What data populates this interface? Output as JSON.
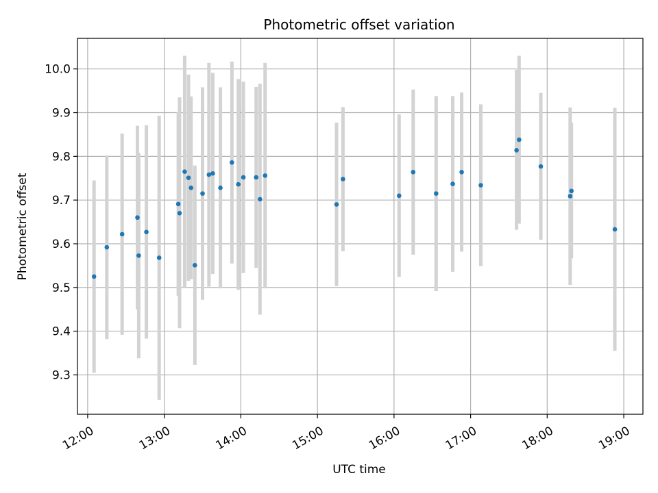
{
  "chart_data": {
    "type": "scatter",
    "title": "Photometric offset variation",
    "xlabel": "UTC time",
    "ylabel": "Photometric offset",
    "xlim": [
      "11:52",
      "19:15"
    ],
    "ylim": [
      9.21,
      10.07
    ],
    "x_ticks": [
      "12:00",
      "13:00",
      "14:00",
      "15:00",
      "16:00",
      "17:00",
      "18:00",
      "19:00"
    ],
    "y_ticks": [
      "9.3",
      "9.4",
      "9.5",
      "9.6",
      "9.7",
      "9.8",
      "9.9",
      "10.0"
    ],
    "grid": true,
    "colors": {
      "point": "#1f77b4",
      "errorbar": "#d3d3d3",
      "grid": "#b0b0b0"
    },
    "points": [
      {
        "x": "12:05",
        "y": 9.525,
        "lo": 9.305,
        "hi": 9.745
      },
      {
        "x": "12:15",
        "y": 9.592,
        "lo": 9.382,
        "hi": 9.802
      },
      {
        "x": "12:27",
        "y": 9.622,
        "lo": 9.392,
        "hi": 9.852
      },
      {
        "x": "12:39",
        "y": 9.66,
        "lo": 9.45,
        "hi": 9.87
      },
      {
        "x": "12:40",
        "y": 9.573,
        "lo": 9.338,
        "hi": 9.808
      },
      {
        "x": "12:46",
        "y": 9.627,
        "lo": 9.383,
        "hi": 9.871
      },
      {
        "x": "12:56",
        "y": 9.568,
        "lo": 9.243,
        "hi": 9.893
      },
      {
        "x": "13:11",
        "y": 9.691,
        "lo": 9.481,
        "hi": 9.901
      },
      {
        "x": "13:12",
        "y": 9.67,
        "lo": 9.407,
        "hi": 9.935
      },
      {
        "x": "13:16",
        "y": 9.765,
        "lo": 9.5,
        "hi": 10.03
      },
      {
        "x": "13:19",
        "y": 9.751,
        "lo": 9.515,
        "hi": 9.987
      },
      {
        "x": "13:21",
        "y": 9.728,
        "lo": 9.519,
        "hi": 9.937
      },
      {
        "x": "13:24",
        "y": 9.551,
        "lo": 9.323,
        "hi": 9.779
      },
      {
        "x": "13:30",
        "y": 9.715,
        "lo": 9.472,
        "hi": 9.958
      },
      {
        "x": "13:35",
        "y": 9.758,
        "lo": 9.502,
        "hi": 10.014
      },
      {
        "x": "13:38",
        "y": 9.761,
        "lo": 9.531,
        "hi": 9.991
      },
      {
        "x": "13:44",
        "y": 9.728,
        "lo": 9.498,
        "hi": 9.958
      },
      {
        "x": "13:53",
        "y": 9.786,
        "lo": 9.555,
        "hi": 10.017
      },
      {
        "x": "13:58",
        "y": 9.736,
        "lo": 9.495,
        "hi": 9.977
      },
      {
        "x": "14:02",
        "y": 9.752,
        "lo": 9.533,
        "hi": 9.971
      },
      {
        "x": "14:12",
        "y": 9.752,
        "lo": 9.545,
        "hi": 9.959
      },
      {
        "x": "14:15",
        "y": 9.702,
        "lo": 9.438,
        "hi": 9.966
      },
      {
        "x": "14:19",
        "y": 9.756,
        "lo": 9.498,
        "hi": 10.014
      },
      {
        "x": "15:15",
        "y": 9.69,
        "lo": 9.503,
        "hi": 9.877
      },
      {
        "x": "15:20",
        "y": 9.748,
        "lo": 9.583,
        "hi": 9.913
      },
      {
        "x": "16:04",
        "y": 9.71,
        "lo": 9.524,
        "hi": 9.896
      },
      {
        "x": "16:15",
        "y": 9.764,
        "lo": 9.575,
        "hi": 9.953
      },
      {
        "x": "16:33",
        "y": 9.715,
        "lo": 9.492,
        "hi": 9.938
      },
      {
        "x": "16:46",
        "y": 9.737,
        "lo": 9.536,
        "hi": 9.938
      },
      {
        "x": "16:53",
        "y": 9.764,
        "lo": 9.582,
        "hi": 9.946
      },
      {
        "x": "17:08",
        "y": 9.734,
        "lo": 9.549,
        "hi": 9.919
      },
      {
        "x": "17:36",
        "y": 9.814,
        "lo": 9.632,
        "hi": 9.998
      },
      {
        "x": "17:38",
        "y": 9.838,
        "lo": 9.646,
        "hi": 10.03
      },
      {
        "x": "17:55",
        "y": 9.777,
        "lo": 9.609,
        "hi": 9.945
      },
      {
        "x": "18:18",
        "y": 9.709,
        "lo": 9.506,
        "hi": 9.912
      },
      {
        "x": "18:19",
        "y": 9.721,
        "lo": 9.567,
        "hi": 9.877
      },
      {
        "x": "18:53",
        "y": 9.633,
        "lo": 9.355,
        "hi": 9.911
      }
    ]
  }
}
